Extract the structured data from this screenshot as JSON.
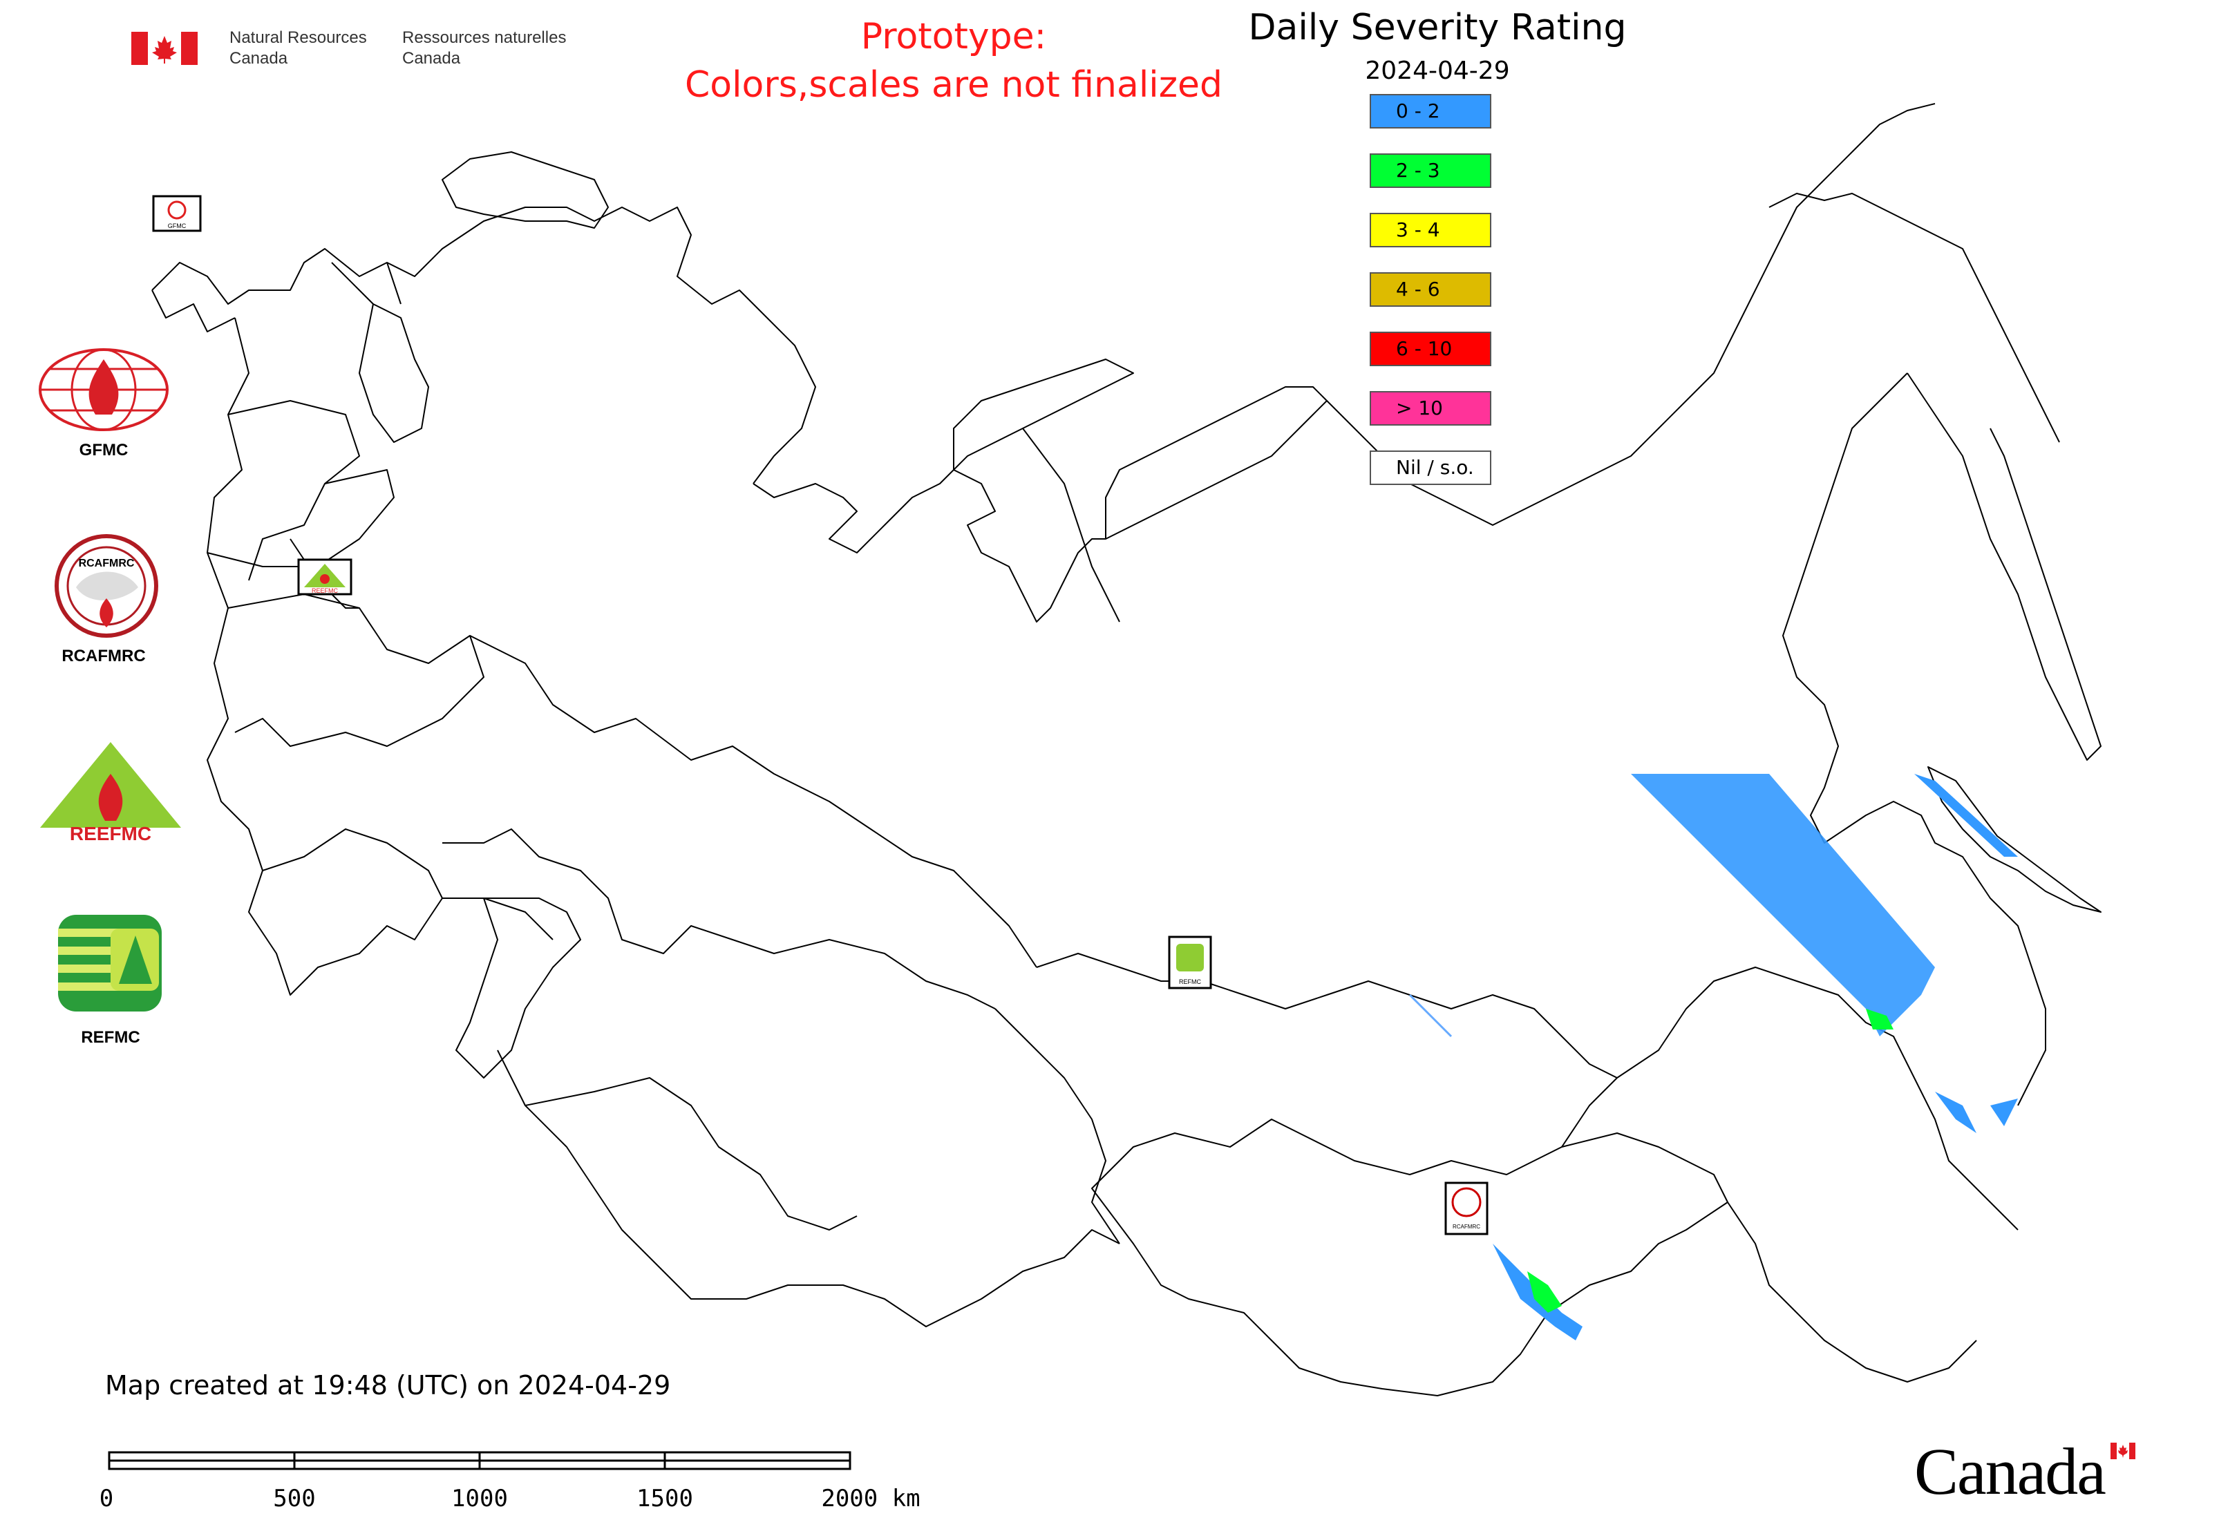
{
  "header": {
    "nrcan_en_line1": "Natural Resources",
    "nrcan_en_line2": "Canada",
    "nrcan_fr_line1": "Ressources naturelles",
    "nrcan_fr_line2": "Canada",
    "prototype_line1": "Prototype:",
    "prototype_line2": "Colors,scales are not finalized",
    "prototype_color": "#ff1a1a"
  },
  "legend": {
    "title": "Daily Severity Rating",
    "date": "2024-04-29",
    "items": [
      {
        "label": "0 - 2",
        "color": "#3399ff"
      },
      {
        "label": "2 - 3",
        "color": "#00ff33"
      },
      {
        "label": "3 - 4",
        "color": "#ffff00"
      },
      {
        "label": "4 - 6",
        "color": "#ddbb00"
      },
      {
        "label": "6 - 10",
        "color": "#ff0000"
      },
      {
        "label": "> 10",
        "color": "#ff3399"
      },
      {
        "label": "Nil / s.o.",
        "color": "#ffffff"
      }
    ]
  },
  "logos": {
    "gfmc": "GFMC",
    "rcafmrc": "RCAFMRC",
    "reefmc": "REEFMC",
    "refmc": "REFMC",
    "gfmc_small": "GFMC",
    "reefmc_small": "REEFMC",
    "refmc_small": "REFMC",
    "rcafmrc_small": "RCAFMRC"
  },
  "footer": {
    "created": "Map created at 19:48 (UTC) on 2024-04-29",
    "scale_labels": [
      "0",
      "500",
      "1000",
      "1500",
      "2000 km"
    ],
    "wordmark": "Canada"
  }
}
